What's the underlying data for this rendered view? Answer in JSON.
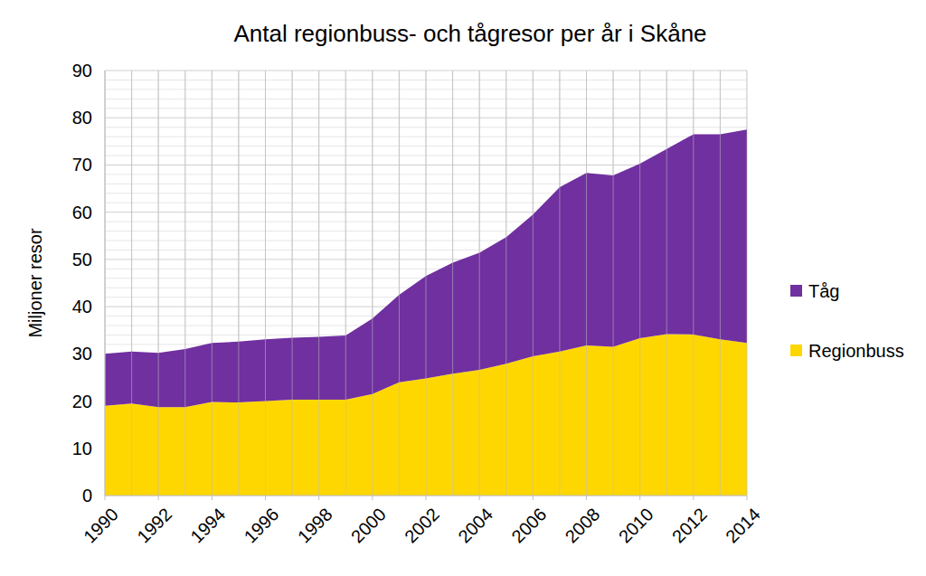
{
  "chart_data": {
    "type": "area",
    "stacked": true,
    "grid": true,
    "legend": "right",
    "title": "Antal regionbuss- och tågresor per år i Skåne",
    "y_label": "Miljoner resor",
    "x": [
      1990,
      1991,
      1992,
      1993,
      1994,
      1995,
      1996,
      1997,
      1998,
      1999,
      2000,
      2001,
      2002,
      2003,
      2004,
      2005,
      2006,
      2007,
      2008,
      2009,
      2010,
      2011,
      2012,
      2013,
      2014
    ],
    "xlim": [
      1990,
      2014
    ],
    "xticks": [
      1990,
      1992,
      1994,
      1996,
      1998,
      2000,
      2002,
      2004,
      2006,
      2008,
      2010,
      2012,
      2014
    ],
    "ylim": [
      0,
      90
    ],
    "yticks": [
      0,
      10,
      20,
      30,
      40,
      50,
      60,
      70,
      80,
      90
    ],
    "series": [
      {
        "name": "Regionbuss",
        "color": "#ffd700",
        "values": [
          19.0,
          19.5,
          18.7,
          18.7,
          19.8,
          19.7,
          20.0,
          20.3,
          20.3,
          20.3,
          21.5,
          24.0,
          24.8,
          25.8,
          26.6,
          27.9,
          29.5,
          30.5,
          31.8,
          31.5,
          33.3,
          34.2,
          34.1,
          33.1,
          32.3
        ]
      },
      {
        "name": "Tåg",
        "color": "#7030a0",
        "values": [
          11.0,
          11.0,
          11.5,
          12.3,
          12.5,
          12.9,
          13.1,
          13.1,
          13.3,
          13.6,
          16.0,
          18.5,
          21.7,
          23.5,
          24.8,
          26.8,
          30.0,
          34.8,
          36.5,
          36.3,
          37.0,
          39.2,
          42.4,
          43.4,
          45.2
        ]
      }
    ]
  }
}
